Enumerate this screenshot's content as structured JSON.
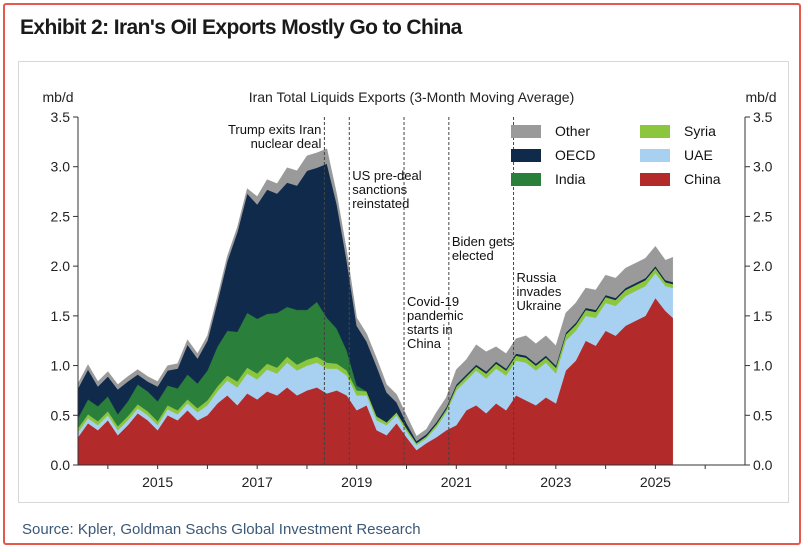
{
  "header": {
    "title": "Exhibit 2: Iran's Oil Exports Mostly Go to China"
  },
  "footer": {
    "source": "Source: Kpler, Goldman Sachs Global Investment Research"
  },
  "colors": {
    "frame": "#e8574c",
    "title": "#1a1a1a",
    "source": "#3b5878"
  },
  "chart_data": {
    "type": "area",
    "stacked": true,
    "title": "Iran Total Liquids Exports (3-Month Moving Average)",
    "ylabel_left": "mb/d",
    "ylabel_right": "mb/d",
    "xlim": [
      2013.4,
      2026.8
    ],
    "ylim": [
      0,
      3.5
    ],
    "yticks": [
      "0.0",
      "0.5",
      "1.0",
      "1.5",
      "2.0",
      "2.5",
      "3.0",
      "3.5"
    ],
    "xticks": [
      "2015",
      "2017",
      "2019",
      "2021",
      "2023",
      "2025"
    ],
    "legend_position": "top-right",
    "x": [
      2013.4,
      2013.6,
      2013.8,
      2014.0,
      2014.2,
      2014.4,
      2014.6,
      2014.8,
      2015.0,
      2015.2,
      2015.4,
      2015.6,
      2015.8,
      2016.0,
      2016.2,
      2016.4,
      2016.6,
      2016.8,
      2017.0,
      2017.2,
      2017.4,
      2017.6,
      2017.8,
      2018.0,
      2018.2,
      2018.4,
      2018.6,
      2018.8,
      2019.0,
      2019.2,
      2019.4,
      2019.6,
      2019.8,
      2020.0,
      2020.2,
      2020.4,
      2020.6,
      2020.8,
      2021.0,
      2021.2,
      2021.4,
      2021.6,
      2021.8,
      2022.0,
      2022.2,
      2022.4,
      2022.6,
      2022.8,
      2023.0,
      2023.2,
      2023.4,
      2023.6,
      2023.8,
      2024.0,
      2024.2,
      2024.4,
      2024.6,
      2024.8,
      2025.0,
      2025.2,
      2025.35
    ],
    "series": [
      {
        "name": "China",
        "color": "#b22a2a",
        "values": [
          0.28,
          0.42,
          0.35,
          0.45,
          0.3,
          0.4,
          0.52,
          0.45,
          0.35,
          0.5,
          0.45,
          0.55,
          0.45,
          0.5,
          0.62,
          0.7,
          0.6,
          0.72,
          0.66,
          0.74,
          0.7,
          0.78,
          0.7,
          0.75,
          0.78,
          0.72,
          0.75,
          0.7,
          0.55,
          0.6,
          0.35,
          0.3,
          0.42,
          0.28,
          0.15,
          0.22,
          0.28,
          0.35,
          0.4,
          0.55,
          0.6,
          0.52,
          0.62,
          0.55,
          0.7,
          0.65,
          0.6,
          0.68,
          0.62,
          0.95,
          1.05,
          1.25,
          1.2,
          1.35,
          1.3,
          1.4,
          1.45,
          1.5,
          1.68,
          1.55,
          1.48
        ]
      },
      {
        "name": "UAE",
        "color": "#a8d0f0",
        "values": [
          0.05,
          0.05,
          0.05,
          0.05,
          0.05,
          0.05,
          0.05,
          0.05,
          0.05,
          0.06,
          0.06,
          0.07,
          0.08,
          0.1,
          0.12,
          0.15,
          0.18,
          0.2,
          0.2,
          0.22,
          0.22,
          0.25,
          0.25,
          0.25,
          0.25,
          0.25,
          0.22,
          0.2,
          0.15,
          0.1,
          0.1,
          0.1,
          0.08,
          0.06,
          0.05,
          0.05,
          0.1,
          0.18,
          0.35,
          0.3,
          0.35,
          0.35,
          0.35,
          0.35,
          0.35,
          0.38,
          0.35,
          0.35,
          0.3,
          0.3,
          0.3,
          0.25,
          0.28,
          0.28,
          0.3,
          0.3,
          0.3,
          0.3,
          0.25,
          0.25,
          0.3
        ]
      },
      {
        "name": "Syria",
        "color": "#8cc63f",
        "values": [
          0.04,
          0.04,
          0.04,
          0.04,
          0.04,
          0.04,
          0.04,
          0.04,
          0.04,
          0.04,
          0.04,
          0.04,
          0.04,
          0.05,
          0.05,
          0.05,
          0.06,
          0.06,
          0.06,
          0.06,
          0.06,
          0.06,
          0.06,
          0.06,
          0.06,
          0.06,
          0.05,
          0.05,
          0.05,
          0.04,
          0.04,
          0.03,
          0.03,
          0.03,
          0.02,
          0.02,
          0.03,
          0.03,
          0.04,
          0.04,
          0.04,
          0.05,
          0.05,
          0.05,
          0.05,
          0.05,
          0.05,
          0.05,
          0.06,
          0.06,
          0.06,
          0.06,
          0.06,
          0.06,
          0.06,
          0.06,
          0.06,
          0.06,
          0.05,
          0.04,
          0.04
        ]
      },
      {
        "name": "India",
        "color": "#2a7f3a",
        "values": [
          0.1,
          0.15,
          0.15,
          0.15,
          0.12,
          0.15,
          0.2,
          0.2,
          0.2,
          0.2,
          0.22,
          0.25,
          0.25,
          0.3,
          0.4,
          0.45,
          0.5,
          0.55,
          0.55,
          0.5,
          0.55,
          0.5,
          0.55,
          0.5,
          0.55,
          0.45,
          0.35,
          0.2,
          0.05,
          0.0,
          0.0,
          0.0,
          0.0,
          0.0,
          0.0,
          0.0,
          0.0,
          0.0,
          0.0,
          0.0,
          0.0,
          0.0,
          0.0,
          0.0,
          0.0,
          0.0,
          0.0,
          0.0,
          0.0,
          0.0,
          0.0,
          0.0,
          0.0,
          0.0,
          0.0,
          0.0,
          0.0,
          0.0,
          0.0,
          0.0,
          0.0
        ]
      },
      {
        "name": "OECD",
        "color": "#102a4c",
        "values": [
          0.3,
          0.3,
          0.2,
          0.2,
          0.25,
          0.2,
          0.1,
          0.1,
          0.15,
          0.15,
          0.2,
          0.3,
          0.25,
          0.3,
          0.45,
          0.7,
          1.0,
          1.2,
          1.15,
          1.25,
          1.2,
          1.25,
          1.25,
          1.4,
          1.35,
          1.55,
          1.25,
          0.9,
          0.6,
          0.5,
          0.5,
          0.3,
          0.1,
          0.05,
          0.02,
          0.02,
          0.02,
          0.02,
          0.02,
          0.02,
          0.02,
          0.02,
          0.02,
          0.02,
          0.02,
          0.02,
          0.02,
          0.02,
          0.02,
          0.02,
          0.02,
          0.02,
          0.02,
          0.02,
          0.02,
          0.02,
          0.02,
          0.02,
          0.02,
          0.02,
          0.02
        ]
      },
      {
        "name": "Other",
        "color": "#9a9a9a",
        "values": [
          0.05,
          0.05,
          0.05,
          0.05,
          0.05,
          0.05,
          0.05,
          0.05,
          0.05,
          0.05,
          0.05,
          0.05,
          0.05,
          0.05,
          0.05,
          0.05,
          0.05,
          0.05,
          0.08,
          0.1,
          0.1,
          0.15,
          0.15,
          0.15,
          0.15,
          0.15,
          0.1,
          0.1,
          0.08,
          0.08,
          0.08,
          0.08,
          0.08,
          0.08,
          0.05,
          0.05,
          0.1,
          0.1,
          0.15,
          0.15,
          0.2,
          0.2,
          0.15,
          0.15,
          0.15,
          0.2,
          0.2,
          0.2,
          0.2,
          0.2,
          0.2,
          0.2,
          0.2,
          0.2,
          0.2,
          0.2,
          0.2,
          0.2,
          0.2,
          0.2,
          0.25
        ]
      }
    ],
    "legend": [
      {
        "name": "Other",
        "color": "#9a9a9a"
      },
      {
        "name": "Syria",
        "color": "#8cc63f"
      },
      {
        "name": "OECD",
        "color": "#102a4c"
      },
      {
        "name": "UAE",
        "color": "#a8d0f0"
      },
      {
        "name": "India",
        "color": "#2a7f3a"
      },
      {
        "name": "China",
        "color": "#b22a2a"
      }
    ],
    "events": [
      {
        "x": 2018.35,
        "label_lines": [
          "Trump exits Iran",
          "nuclear deal"
        ],
        "anchor": "end"
      },
      {
        "x": 2018.85,
        "label_lines": [
          "US pre-deal",
          "sanctions",
          "reinstated"
        ],
        "anchor": "start"
      },
      {
        "x": 2019.95,
        "label_lines": [
          "Covid-19",
          "pandemic",
          "starts in",
          "China"
        ],
        "anchor": "start"
      },
      {
        "x": 2020.85,
        "label_lines": [
          "Biden gets",
          "elected"
        ],
        "anchor": "start"
      },
      {
        "x": 2022.15,
        "label_lines": [
          "Russia",
          "invades",
          "Ukraine"
        ],
        "anchor": "start"
      }
    ]
  }
}
